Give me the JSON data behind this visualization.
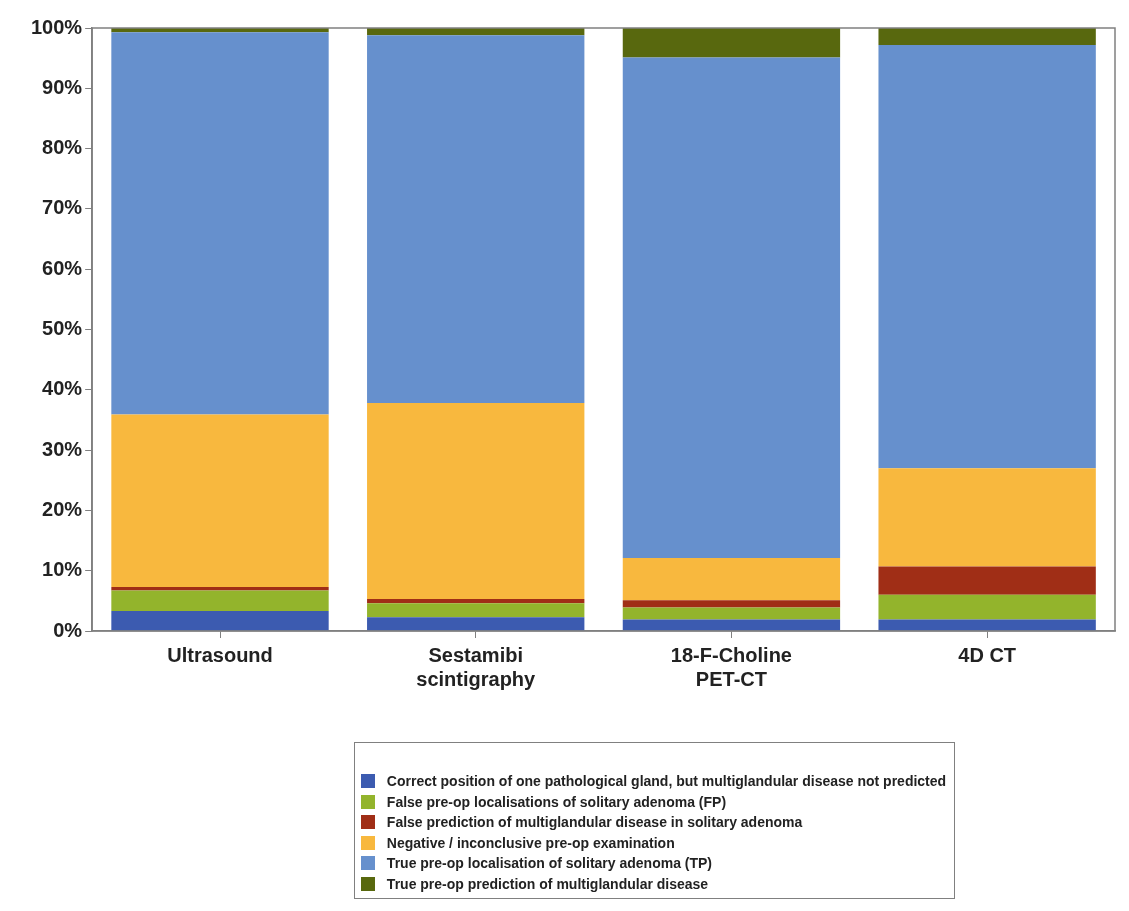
{
  "chart_data": {
    "type": "bar",
    "stacked": true,
    "categories": [
      "Ultrasound",
      "Sestamibi\nscintigraphy",
      "18-F-Choline\nPET-CT",
      "4D CT"
    ],
    "series": [
      {
        "name": "Correct position of one pathological gland, but multiglandular disease not predicted",
        "color": "#3c5bb0",
        "values": [
          3.3,
          2.3,
          1.9,
          1.9
        ]
      },
      {
        "name": "False pre-op localisations of solitary adenoma (FP)",
        "color": "#93b42c",
        "values": [
          3.4,
          2.3,
          2.0,
          4.1
        ]
      },
      {
        "name": "False prediction of multiglandular disease in solitary adenoma",
        "color": "#a02e16",
        "values": [
          0.6,
          0.7,
          1.2,
          4.7
        ]
      },
      {
        "name": "Negative / inconclusive pre-op examination",
        "color": "#f8b83e",
        "values": [
          28.6,
          32.5,
          7.0,
          16.3
        ]
      },
      {
        "name": "True pre-op localisation of solitary adenoma (TP)",
        "color": "#6690cd",
        "values": [
          63.4,
          61.0,
          83.0,
          70.2
        ]
      },
      {
        "name": "True pre-op prediction of multiglandular disease",
        "color": "#58680e",
        "values": [
          0.7,
          1.2,
          4.9,
          2.8
        ]
      }
    ],
    "ylim": [
      0,
      100
    ],
    "yticks": [
      {
        "value": 0,
        "label": "0%"
      },
      {
        "value": 10,
        "label": "10%"
      },
      {
        "value": 20,
        "label": "20%"
      },
      {
        "value": 30,
        "label": "30%"
      },
      {
        "value": 40,
        "label": "40%"
      },
      {
        "value": 50,
        "label": "50%"
      },
      {
        "value": 60,
        "label": "60%"
      },
      {
        "value": 70,
        "label": "70%"
      },
      {
        "value": 80,
        "label": "80%"
      },
      {
        "value": 90,
        "label": "90%"
      },
      {
        "value": 100,
        "label": "100%"
      }
    ],
    "grid": false,
    "legend": "bottom"
  }
}
